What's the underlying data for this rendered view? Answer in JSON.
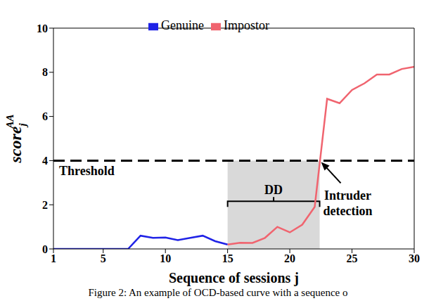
{
  "chart_data": {
    "type": "line",
    "xlabel": "Sequence of sessions j",
    "ylabel": {
      "text": "score",
      "sub": "j",
      "sup": "AA"
    },
    "x": [
      1,
      2,
      3,
      4,
      5,
      6,
      7,
      8,
      9,
      10,
      11,
      12,
      13,
      14,
      15,
      16,
      17,
      18,
      19,
      20,
      21,
      22,
      23,
      24,
      25,
      26,
      27,
      28,
      29,
      30
    ],
    "series": [
      {
        "name": "Genuine",
        "color": "#1f22e6",
        "values": [
          0,
          0,
          0,
          0,
          0,
          0,
          0,
          0.6,
          0.5,
          0.52,
          0.4,
          0.5,
          0.6,
          0.35,
          0.2,
          null,
          null,
          null,
          null,
          null,
          null,
          null,
          null,
          null,
          null,
          null,
          null,
          null,
          null,
          null
        ]
      },
      {
        "name": "Impostor",
        "color": "#f0646f",
        "values": [
          null,
          null,
          null,
          null,
          null,
          null,
          null,
          null,
          null,
          null,
          null,
          null,
          null,
          null,
          0.2,
          0.28,
          0.27,
          0.5,
          1.0,
          0.75,
          1.1,
          1.9,
          6.8,
          6.6,
          7.2,
          7.5,
          7.9,
          7.9,
          8.15,
          8.25
        ]
      }
    ],
    "xlim": [
      1,
      30
    ],
    "xticks": [
      1,
      5,
      10,
      15,
      20,
      25,
      30
    ],
    "ylim": [
      0,
      10
    ],
    "yticks": [
      0,
      2,
      4,
      6,
      8,
      10
    ],
    "legend": "top",
    "grid": false,
    "threshold": {
      "label": "Threshold",
      "value": 4
    },
    "dd": {
      "label": "DD",
      "range": [
        15,
        22.4
      ]
    },
    "intruder_detection": {
      "label": "Intruder detection",
      "x": 22.4,
      "y": 4
    },
    "caption": "Figure 2: An example of OCD-based curve with a sequence o"
  }
}
